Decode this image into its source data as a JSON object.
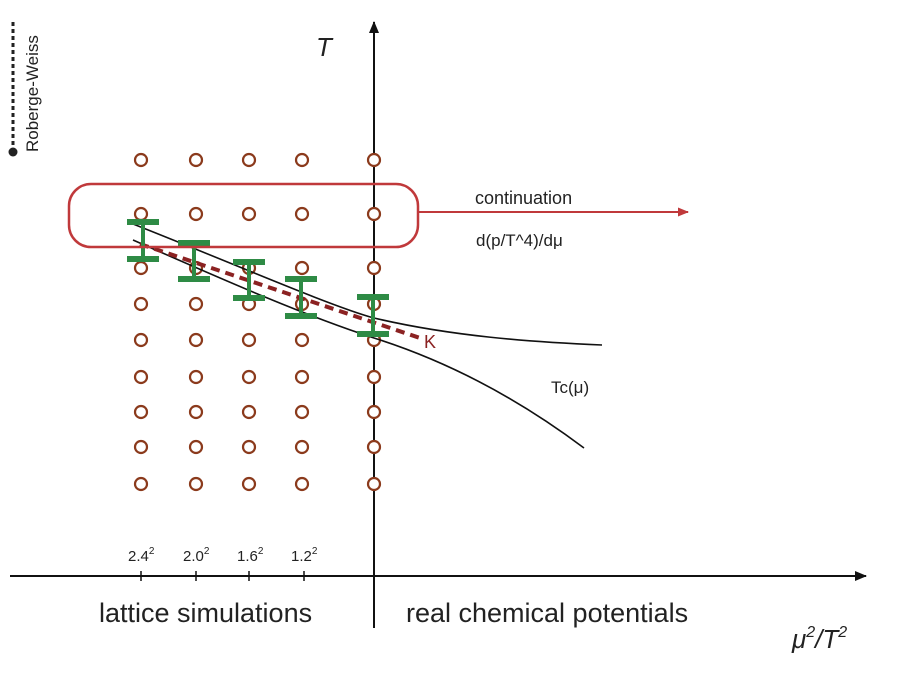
{
  "labels": {
    "y_axis": "T",
    "x_axis_mu": "μ",
    "x_axis_exp1": "2",
    "x_axis_slash": "/",
    "x_axis_T": "T",
    "x_axis_exp2": "2",
    "roberge_weiss": "Roberge-Weiss",
    "continuation": "continuation",
    "derivative": "d(p/T^4)/dμ",
    "tc": "Tc(μ)",
    "critical_point": "K",
    "left_region": "lattice simulations",
    "right_region": "real chemical potentials"
  },
  "tick_labels": [
    {
      "base": "2.4",
      "exp": "2"
    },
    {
      "base": "2.0",
      "exp": "2"
    },
    {
      "base": "1.6",
      "exp": "2"
    },
    {
      "base": "1.2",
      "exp": "2"
    }
  ],
  "colors": {
    "axis": "#111111",
    "grid_marker": "#8b3a1c",
    "error_bar": "#2e8b45",
    "highlight": "#c0393b",
    "dashed_line": "#8b2222",
    "curve": "#111111"
  }
}
